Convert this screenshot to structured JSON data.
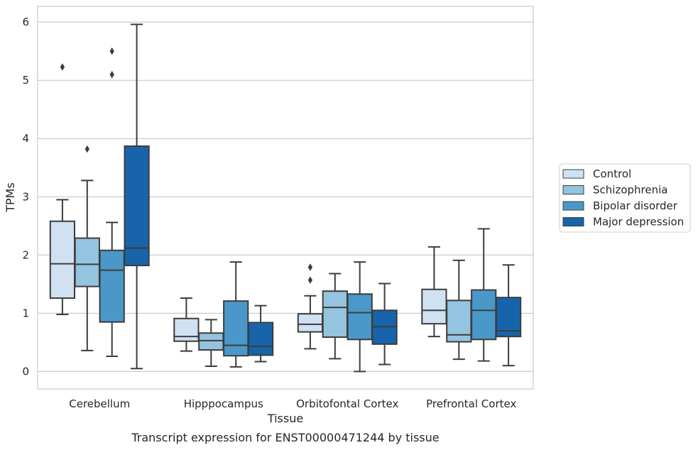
{
  "chart_data": {
    "type": "box",
    "caption": "Transcript expression for ENST00000471244 by tissue",
    "xlabel": "Tissue",
    "ylabel": "TPMs",
    "ylim": [
      -0.3,
      6.27
    ],
    "yticks": [
      0,
      1,
      2,
      3,
      4,
      5,
      6
    ],
    "grid": true,
    "legend_position": "right",
    "categories": [
      "Cerebellum",
      "Hipppocampus",
      "Orbitofontal Cortex",
      "Prefrontal Cortex"
    ],
    "series": [
      {
        "name": "Control",
        "color": "#d0e1f2",
        "boxes": [
          {
            "whislo": 0.98,
            "q1": 1.26,
            "med": 1.85,
            "q3": 2.58,
            "whishi": 2.95,
            "fliers": [
              5.23
            ]
          },
          {
            "whislo": 0.35,
            "q1": 0.52,
            "med": 0.6,
            "q3": 0.91,
            "whishi": 1.26,
            "fliers": []
          },
          {
            "whislo": 0.39,
            "q1": 0.68,
            "med": 0.81,
            "q3": 0.99,
            "whishi": 1.3,
            "fliers": [
              1.57,
              1.79
            ]
          },
          {
            "whislo": 0.6,
            "q1": 0.82,
            "med": 1.05,
            "q3": 1.41,
            "whishi": 2.14,
            "fliers": []
          }
        ]
      },
      {
        "name": "Schizophrenia",
        "color": "#94c4df",
        "boxes": [
          {
            "whislo": 0.36,
            "q1": 1.46,
            "med": 1.84,
            "q3": 2.29,
            "whishi": 3.28,
            "fliers": [
              3.82
            ]
          },
          {
            "whislo": 0.09,
            "q1": 0.37,
            "med": 0.53,
            "q3": 0.66,
            "whishi": 0.89,
            "fliers": []
          },
          {
            "whislo": 0.22,
            "q1": 0.59,
            "med": 1.1,
            "q3": 1.38,
            "whishi": 1.68,
            "fliers": []
          },
          {
            "whislo": 0.21,
            "q1": 0.51,
            "med": 0.63,
            "q3": 1.22,
            "whishi": 1.91,
            "fliers": []
          }
        ]
      },
      {
        "name": "Bipolar disorder",
        "color": "#4a98c9",
        "boxes": [
          {
            "whislo": 0.26,
            "q1": 0.85,
            "med": 1.74,
            "q3": 2.08,
            "whishi": 2.56,
            "fliers": [
              5.1,
              5.5
            ]
          },
          {
            "whislo": 0.08,
            "q1": 0.27,
            "med": 0.45,
            "q3": 1.21,
            "whishi": 1.88,
            "fliers": []
          },
          {
            "whislo": 0.0,
            "q1": 0.55,
            "med": 1.01,
            "q3": 1.33,
            "whishi": 1.88,
            "fliers": []
          },
          {
            "whislo": 0.18,
            "q1": 0.55,
            "med": 1.05,
            "q3": 1.4,
            "whishi": 2.45,
            "fliers": []
          }
        ]
      },
      {
        "name": "Major depression",
        "color": "#1764ab",
        "boxes": [
          {
            "whislo": 0.05,
            "q1": 1.82,
            "med": 2.12,
            "q3": 3.87,
            "whishi": 5.96,
            "fliers": []
          },
          {
            "whislo": 0.17,
            "q1": 0.28,
            "med": 0.43,
            "q3": 0.84,
            "whishi": 1.13,
            "fliers": []
          },
          {
            "whislo": 0.12,
            "q1": 0.47,
            "med": 0.77,
            "q3": 1.05,
            "whishi": 1.51,
            "fliers": []
          },
          {
            "whislo": 0.1,
            "q1": 0.6,
            "med": 0.7,
            "q3": 1.27,
            "whishi": 1.83,
            "fliers": []
          }
        ]
      }
    ]
  }
}
